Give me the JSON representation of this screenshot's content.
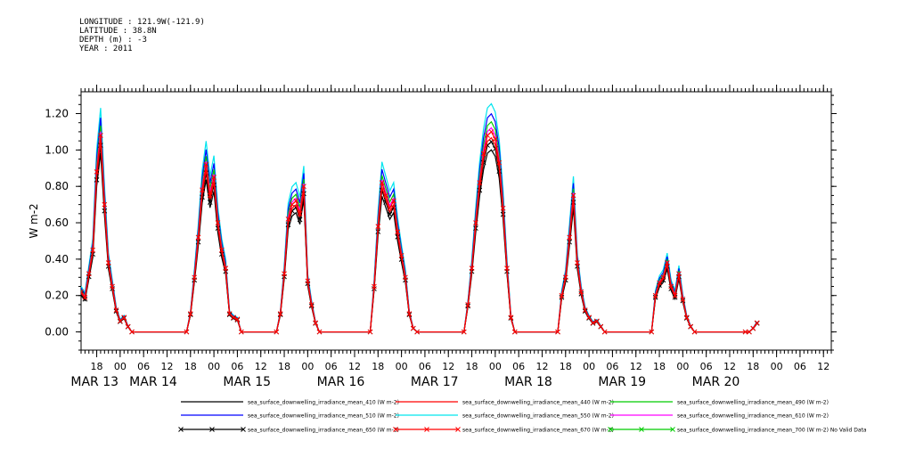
{
  "header": {
    "longitude": "LONGITUDE : 121.9W(-121.9)",
    "latitude": "LATITUDE : 38.8N",
    "depth": "DEPTH (m) : -3",
    "year": "YEAR : 2011"
  },
  "chart_data": {
    "type": "line",
    "ylabel": "W m-2",
    "xlabel": "",
    "ylim": [
      -0.1,
      1.32
    ],
    "yticks": [
      0.0,
      0.2,
      0.4,
      0.6,
      0.8,
      1.0,
      1.2
    ],
    "ytick_labels": [
      "0.00",
      "0.20",
      "0.40",
      "0.60",
      "0.80",
      "1.00",
      "1.20"
    ],
    "xlim_hours": [
      0,
      192
    ],
    "x_axis_start": "MAR 13 14:00",
    "hour_ticks": [
      {
        "h": 4,
        "label": "18"
      },
      {
        "h": 10,
        "label": "00"
      },
      {
        "h": 16,
        "label": "06"
      },
      {
        "h": 22,
        "label": "12"
      },
      {
        "h": 28,
        "label": "18"
      },
      {
        "h": 34,
        "label": "00"
      },
      {
        "h": 40,
        "label": "06"
      },
      {
        "h": 46,
        "label": "12"
      },
      {
        "h": 52,
        "label": "18"
      },
      {
        "h": 58,
        "label": "00"
      },
      {
        "h": 64,
        "label": "06"
      },
      {
        "h": 70,
        "label": "12"
      },
      {
        "h": 76,
        "label": "18"
      },
      {
        "h": 82,
        "label": "00"
      },
      {
        "h": 88,
        "label": "06"
      },
      {
        "h": 94,
        "label": "12"
      },
      {
        "h": 100,
        "label": "18"
      },
      {
        "h": 106,
        "label": "00"
      },
      {
        "h": 112,
        "label": "06"
      },
      {
        "h": 118,
        "label": "12"
      },
      {
        "h": 124,
        "label": "18"
      },
      {
        "h": 130,
        "label": "00"
      },
      {
        "h": 136,
        "label": "06"
      },
      {
        "h": 142,
        "label": "12"
      },
      {
        "h": 148,
        "label": "18"
      },
      {
        "h": 154,
        "label": "00"
      },
      {
        "h": 160,
        "label": "06"
      },
      {
        "h": 166,
        "label": "12"
      },
      {
        "h": 172,
        "label": "18"
      },
      {
        "h": 178,
        "label": "00"
      },
      {
        "h": 184,
        "label": "06"
      },
      {
        "h": 190,
        "label": "12"
      }
    ],
    "date_labels": [
      {
        "h": 1,
        "label": "MAR 13"
      },
      {
        "h": 16,
        "label": "MAR 14"
      },
      {
        "h": 40,
        "label": "MAR 15"
      },
      {
        "h": 64,
        "label": "MAR 16"
      },
      {
        "h": 88,
        "label": "MAR 17"
      },
      {
        "h": 112,
        "label": "MAR 18"
      },
      {
        "h": 136,
        "label": "MAR 19"
      },
      {
        "h": 160,
        "label": "MAR 20"
      }
    ],
    "base_series_points": [
      [
        0,
        0.22
      ],
      [
        1,
        0.19
      ],
      [
        2,
        0.32
      ],
      [
        3,
        0.45
      ],
      [
        4,
        0.88
      ],
      [
        5,
        1.08
      ],
      [
        6,
        0.7
      ],
      [
        7,
        0.38
      ],
      [
        8,
        0.25
      ],
      [
        9,
        0.12
      ],
      [
        10,
        0.06
      ],
      [
        11,
        0.08
      ],
      [
        12,
        0.03
      ],
      [
        13,
        0.0
      ],
      [
        27,
        0.0
      ],
      [
        28,
        0.1
      ],
      [
        29,
        0.3
      ],
      [
        30,
        0.52
      ],
      [
        31,
        0.78
      ],
      [
        32,
        0.92
      ],
      [
        33,
        0.75
      ],
      [
        34,
        0.85
      ],
      [
        35,
        0.6
      ],
      [
        36,
        0.45
      ],
      [
        37,
        0.35
      ],
      [
        38,
        0.1
      ],
      [
        39,
        0.08
      ],
      [
        40,
        0.07
      ],
      [
        41,
        0.0
      ],
      [
        50,
        0.0
      ],
      [
        51,
        0.1
      ],
      [
        52,
        0.32
      ],
      [
        53,
        0.62
      ],
      [
        54,
        0.7
      ],
      [
        55,
        0.72
      ],
      [
        56,
        0.65
      ],
      [
        57,
        0.8
      ],
      [
        58,
        0.28
      ],
      [
        59,
        0.15
      ],
      [
        60,
        0.05
      ],
      [
        61,
        0.0
      ],
      [
        74,
        0.0
      ],
      [
        75,
        0.25
      ],
      [
        76,
        0.58
      ],
      [
        77,
        0.82
      ],
      [
        78,
        0.75
      ],
      [
        79,
        0.68
      ],
      [
        80,
        0.72
      ],
      [
        81,
        0.55
      ],
      [
        82,
        0.42
      ],
      [
        83,
        0.3
      ],
      [
        84,
        0.1
      ],
      [
        85,
        0.02
      ],
      [
        86,
        0.0
      ],
      [
        98,
        0.0
      ],
      [
        99,
        0.15
      ],
      [
        100,
        0.35
      ],
      [
        101,
        0.6
      ],
      [
        102,
        0.82
      ],
      [
        103,
        0.98
      ],
      [
        104,
        1.08
      ],
      [
        105,
        1.1
      ],
      [
        106,
        1.06
      ],
      [
        107,
        0.93
      ],
      [
        108,
        0.68
      ],
      [
        109,
        0.35
      ],
      [
        110,
        0.08
      ],
      [
        111,
        0.0
      ],
      [
        122,
        0.0
      ],
      [
        123,
        0.2
      ],
      [
        124,
        0.3
      ],
      [
        125,
        0.52
      ],
      [
        126,
        0.75
      ],
      [
        127,
        0.38
      ],
      [
        128,
        0.22
      ],
      [
        129,
        0.12
      ],
      [
        130,
        0.08
      ],
      [
        131,
        0.05
      ],
      [
        132,
        0.06
      ],
      [
        133,
        0.03
      ],
      [
        134,
        0.0
      ],
      [
        146,
        0.0
      ],
      [
        147,
        0.2
      ],
      [
        148,
        0.27
      ],
      [
        149,
        0.3
      ],
      [
        150,
        0.38
      ],
      [
        151,
        0.25
      ],
      [
        152,
        0.2
      ],
      [
        153,
        0.32
      ],
      [
        154,
        0.18
      ],
      [
        155,
        0.08
      ],
      [
        156,
        0.03
      ],
      [
        157,
        0.0
      ],
      [
        170,
        0.0
      ],
      [
        171,
        0.0
      ],
      [
        172,
        0.02
      ],
      [
        173,
        0.05
      ]
    ],
    "series": [
      {
        "name": "sea_surface_downwelling_irradiance_mean_410 (W m-2)",
        "color": "#000000",
        "scale": 0.91,
        "marker": false
      },
      {
        "name": "sea_surface_downwelling_irradiance_mean_440 (W m-2)",
        "color": "#ff0000",
        "scale": 0.97,
        "marker": false
      },
      {
        "name": "sea_surface_downwelling_irradiance_mean_490 (W m-2)",
        "color": "#00cc00",
        "scale": 1.05,
        "marker": false
      },
      {
        "name": "sea_surface_downwelling_irradiance_mean_510 (W m-2)",
        "color": "#0000ff",
        "scale": 1.09,
        "marker": false
      },
      {
        "name": "sea_surface_downwelling_irradiance_mean_550 (W m-2)",
        "color": "#00e5ee",
        "scale": 1.14,
        "marker": false
      },
      {
        "name": "sea_surface_downwelling_irradiance_mean_610 (W m-2)",
        "color": "#ff00ff",
        "scale": 1.02,
        "marker": false
      },
      {
        "name": "sea_surface_downwelling_irradiance_mean_650 (W m-2)",
        "color": "#000000",
        "scale": 0.95,
        "marker": true
      },
      {
        "name": "sea_surface_downwelling_irradiance_mean_670 (W m-2)",
        "color": "#ff0000",
        "scale": 1.0,
        "marker": true
      },
      {
        "name": "sea_surface_downwelling_irradiance_mean_700 (W m-2) No Valid Data",
        "color": "#00cc00",
        "scale": 0,
        "marker": true
      }
    ]
  }
}
